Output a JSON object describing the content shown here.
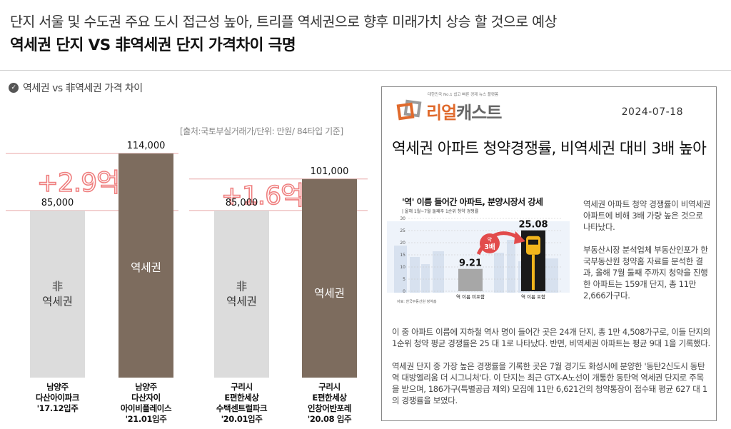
{
  "header": {
    "subtitle": "단지 서울 및 수도권 주요 도시 접근성 높아, 트리플 역세권으로 향후 미래가치 상승 할 것으로 예상",
    "title": "역세권 단지 VS 非역세권 단지 가격차이 극명"
  },
  "section": {
    "title": "역세권 vs 非역세권 가격 차이",
    "source": "[출처:국토부실거래가/단위: 만원/ 84타입 기준]"
  },
  "colors": {
    "non_station_bar": "#dcdcdc",
    "station_bar": "#7d6c5e",
    "diff_text": "#ef7f7f",
    "ref_line": "#e8a6a6"
  },
  "chart_data": {
    "type": "bar",
    "unit": "만원",
    "groups": [
      {
        "difference_label": "+2.9억",
        "bars": [
          {
            "value": 85000,
            "value_label": "85,000",
            "inner_label": [
              "非",
              "역세권"
            ],
            "category": [
              "남양주",
              "다산아이파크",
              "'17.12입주"
            ]
          },
          {
            "value": 114000,
            "value_label": "114,000",
            "inner_label": [
              "역세권"
            ],
            "category": [
              "남양주",
              "다산자이",
              "아이비플레이스",
              "'21.01입주"
            ]
          }
        ]
      },
      {
        "difference_label": "+1.6억",
        "bars": [
          {
            "value": 85000,
            "value_label": "85,000",
            "inner_label": [
              "非",
              "역세권"
            ],
            "category": [
              "구리시",
              "E편한세상",
              "수택센트럴파크",
              "'20.01입주"
            ]
          },
          {
            "value": 101000,
            "value_label": "101,000",
            "inner_label": [
              "역세권"
            ],
            "category": [
              "구리시",
              "E편한세상",
              "인창어반포레",
              "'20.08 입주"
            ]
          }
        ]
      }
    ]
  },
  "news": {
    "logo_tagline": "대한민국 No.1 쉽고 빠른 경제 뉴스 플랫폼",
    "logo_word_1": "리얼",
    "logo_word_2": "캐스트",
    "date": "2024-07-18",
    "headline": "역세권 아파트 청약경쟁률, 비역세권 대비 3배 높아",
    "mini_chart": {
      "title": "'역' 이름 들어간 아파트, 분양시장서 강세",
      "subtitle": "| 올해 1월~7월 둘째주 1순위 청약 경쟁률",
      "source": "자료: 한국부동산원 청약홈",
      "y_ticks": [
        "0",
        "5",
        "10",
        "15",
        "20",
        "25",
        "30"
      ],
      "multiplier_label": "약 3배",
      "bars": [
        {
          "category": "역 이름 미포함",
          "value": 9.21,
          "value_label": "9.21"
        },
        {
          "category": "역 이름 포함",
          "value": 25.08,
          "value_label": "25.08"
        }
      ]
    },
    "side_paragraphs": [
      "역세권 아파트 청약 경쟁률이 비역세권 아파트에 비해 3배 가량 높은 것으로 나타났다.",
      "부동산시장 분석업체 부동산인포가 한국부동산원 청약홈 자료를 분석한 결과, 올해 7월 둘째 주까지 청약을 진행한 아파트는 159개 단지, 총 11만 2,666가구다."
    ],
    "body_paragraphs": [
      "이 중 아파트 이름에 지하철 역사 명이 들어간 곳은 24개 단지, 총 1만 4,508가구로, 이들 단지의 1순위 청약 평균 경쟁률은 25 대 1로 나타났다. 반면, 비역세권 아파트는 평균 9대 1을 기록했다.",
      "역세권 단지 중 가장 높은 경쟁률을 기록한 곳은 7월 경기도 화성시에 분양한 '동탄2신도시 동탄역 대방엘리움 더 시그니처'다. 이 단지는 최근 GTX-A노선이 개통한 동탄역 역세권 단지로 주목을 받으며, 186가구(특별공급 제외) 모집에 11만 6,621건의 청약통장이 접수돼 평균 627 대 1의 경쟁률을 보였다."
    ]
  }
}
